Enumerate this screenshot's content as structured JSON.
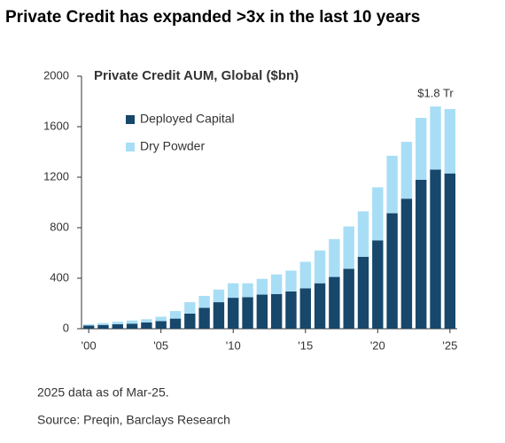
{
  "chart_data": {
    "type": "stacked_bar",
    "title": "Private Credit has expanded >3x in the last 10 years",
    "subtitle": "Private Credit AUM, Global ($bn)",
    "categories": [
      "'00",
      null,
      null,
      null,
      null,
      "'05",
      null,
      null,
      null,
      null,
      "'10",
      null,
      null,
      null,
      null,
      "'15",
      null,
      null,
      null,
      null,
      "'20",
      null,
      null,
      null,
      null,
      "'25"
    ],
    "series": [
      {
        "name": "Deployed Capital",
        "color": "#17476b",
        "values": [
          25,
          30,
          35,
          40,
          50,
          60,
          80,
          120,
          165,
          210,
          245,
          250,
          270,
          275,
          295,
          320,
          360,
          410,
          475,
          570,
          700,
          915,
          1030,
          1180,
          1260,
          1230
        ]
      },
      {
        "name": "Dry Powder",
        "color": "#a8def5",
        "values": [
          10,
          15,
          20,
          25,
          25,
          35,
          60,
          90,
          95,
          100,
          115,
          110,
          125,
          155,
          165,
          210,
          260,
          300,
          335,
          360,
          420,
          455,
          450,
          490,
          500,
          510
        ]
      }
    ],
    "ylim": [
      0,
      2000
    ],
    "yticks": [
      0,
      400,
      800,
      1200,
      1600,
      2000
    ],
    "annotation": "$1.8 Tr",
    "notes": [
      "2025 data as of Mar-25.",
      "Source: Preqin, Barclays Research"
    ]
  }
}
